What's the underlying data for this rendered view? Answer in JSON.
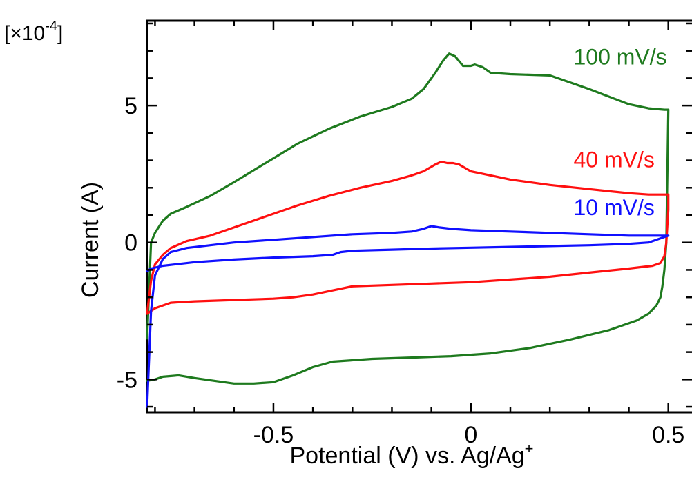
{
  "chart_data": {
    "type": "line",
    "title": "",
    "xlabel": "Potential (V) vs. Ag/Ag",
    "xlabel_sup": "+",
    "ylabel": "Current (A)",
    "y_multiplier": "[×10",
    "y_multiplier_exp": "-4",
    "y_multiplier_close": "]",
    "xlim": [
      -0.82,
      0.56
    ],
    "ylim": [
      -6.2,
      8.1
    ],
    "x_ticks": [
      -0.5,
      0,
      0.5
    ],
    "x_tick_labels": [
      "-0.5",
      "0",
      "0.5"
    ],
    "y_ticks": [
      -5,
      0,
      5
    ],
    "y_tick_labels": [
      "-5",
      "0",
      "5"
    ],
    "grid": false,
    "series": [
      {
        "name": "100 mV/s",
        "color": "#1e7a1e",
        "label_pos": [
          0.26,
          6.5
        ],
        "x": [
          -0.82,
          -0.81,
          -0.8,
          -0.78,
          -0.76,
          -0.72,
          -0.66,
          -0.6,
          -0.52,
          -0.44,
          -0.36,
          -0.28,
          -0.2,
          -0.15,
          -0.12,
          -0.09,
          -0.07,
          -0.055,
          -0.04,
          -0.02,
          0.0,
          0.01,
          0.03,
          0.05,
          0.1,
          0.2,
          0.3,
          0.4,
          0.45,
          0.49,
          0.5,
          0.495,
          0.49,
          0.485,
          0.48,
          0.47,
          0.45,
          0.42,
          0.35,
          0.25,
          0.15,
          0.05,
          -0.05,
          -0.15,
          -0.25,
          -0.35,
          -0.4,
          -0.45,
          -0.5,
          -0.55,
          -0.6,
          -0.65,
          -0.7,
          -0.74,
          -0.78,
          -0.8,
          -0.82
        ],
        "y": [
          -3.5,
          0.0,
          0.35,
          0.8,
          1.05,
          1.3,
          1.7,
          2.2,
          2.9,
          3.6,
          4.15,
          4.6,
          4.95,
          5.25,
          5.6,
          6.2,
          6.65,
          6.9,
          6.8,
          6.45,
          6.45,
          6.5,
          6.4,
          6.2,
          6.15,
          6.1,
          5.6,
          5.05,
          4.9,
          4.85,
          4.85,
          0.0,
          -1.0,
          -1.6,
          -2.0,
          -2.3,
          -2.6,
          -2.85,
          -3.2,
          -3.55,
          -3.85,
          -4.05,
          -4.15,
          -4.2,
          -4.25,
          -4.35,
          -4.55,
          -4.85,
          -5.1,
          -5.15,
          -5.15,
          -5.05,
          -4.95,
          -4.85,
          -4.9,
          -5.0,
          -5.05
        ]
      },
      {
        "name": "40 mV/s",
        "color": "#ff1010",
        "label_pos": [
          0.26,
          2.75
        ],
        "x": [
          -0.82,
          -0.81,
          -0.8,
          -0.78,
          -0.76,
          -0.72,
          -0.66,
          -0.6,
          -0.52,
          -0.44,
          -0.36,
          -0.28,
          -0.2,
          -0.15,
          -0.12,
          -0.09,
          -0.075,
          -0.06,
          -0.045,
          -0.03,
          0.0,
          0.05,
          0.1,
          0.2,
          0.3,
          0.4,
          0.45,
          0.49,
          0.5,
          0.5,
          0.495,
          0.49,
          0.48,
          0.46,
          0.4,
          0.3,
          0.2,
          0.1,
          0.0,
          -0.1,
          -0.2,
          -0.3,
          -0.35,
          -0.4,
          -0.45,
          -0.5,
          -0.6,
          -0.7,
          -0.76,
          -0.8,
          -0.82
        ],
        "y": [
          -2.6,
          -1.4,
          -0.8,
          -0.45,
          -0.2,
          0.05,
          0.25,
          0.55,
          0.95,
          1.35,
          1.7,
          2.0,
          2.25,
          2.45,
          2.6,
          2.85,
          2.95,
          2.9,
          2.9,
          2.85,
          2.6,
          2.45,
          2.3,
          2.1,
          1.95,
          1.8,
          1.75,
          1.75,
          1.75,
          1.2,
          0.0,
          -0.5,
          -0.75,
          -0.85,
          -0.95,
          -1.1,
          -1.25,
          -1.35,
          -1.45,
          -1.5,
          -1.55,
          -1.6,
          -1.75,
          -1.9,
          -2.0,
          -2.05,
          -2.1,
          -2.15,
          -2.2,
          -2.4,
          -2.6
        ]
      },
      {
        "name": "10 mV/s",
        "color": "#1010ff",
        "label_pos": [
          0.26,
          1.0
        ],
        "x": [
          -0.82,
          -0.81,
          -0.8,
          -0.78,
          -0.76,
          -0.72,
          -0.66,
          -0.6,
          -0.5,
          -0.4,
          -0.3,
          -0.2,
          -0.15,
          -0.12,
          -0.1,
          -0.08,
          -0.05,
          0.0,
          0.1,
          0.2,
          0.3,
          0.4,
          0.5,
          0.5,
          0.45,
          0.4,
          0.3,
          0.2,
          0.1,
          0.0,
          -0.1,
          -0.2,
          -0.3,
          -0.33,
          -0.35,
          -0.4,
          -0.5,
          -0.6,
          -0.7,
          -0.78,
          -0.81,
          -0.82
        ],
        "y": [
          -6.0,
          -2.5,
          -1.2,
          -0.6,
          -0.35,
          -0.2,
          -0.1,
          0.0,
          0.1,
          0.2,
          0.3,
          0.35,
          0.4,
          0.5,
          0.6,
          0.55,
          0.5,
          0.45,
          0.4,
          0.35,
          0.3,
          0.25,
          0.25,
          0.25,
          0.0,
          -0.05,
          -0.1,
          -0.13,
          -0.16,
          -0.19,
          -0.22,
          -0.26,
          -0.3,
          -0.35,
          -0.45,
          -0.5,
          -0.55,
          -0.62,
          -0.72,
          -0.85,
          -0.95,
          -1.05
        ]
      }
    ]
  }
}
